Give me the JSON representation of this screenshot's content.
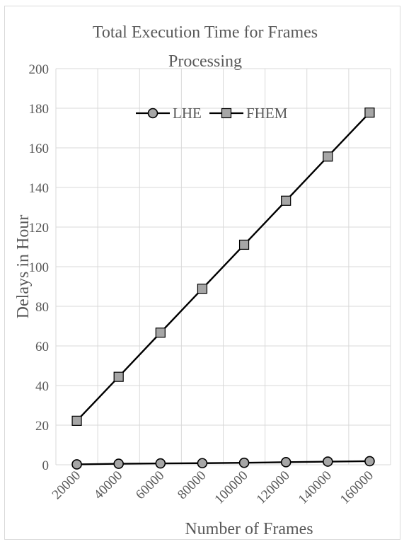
{
  "chart_data": {
    "type": "line",
    "title": "Total Execution Time for Frames Processing",
    "title_lines": [
      "Total Execution Time for Frames",
      "Processing"
    ],
    "xlabel": "Number of Frames",
    "ylabel": "Delays in Hour",
    "categories": [
      "20000",
      "40000",
      "60000",
      "80000",
      "100000",
      "120000",
      "140000",
      "160000"
    ],
    "ylim": [
      0,
      200
    ],
    "yticks": [
      "0",
      "20",
      "40",
      "60",
      "80",
      "100",
      "120",
      "140",
      "160",
      "180",
      "200"
    ],
    "grid": true,
    "legend_position": "top",
    "series": [
      {
        "name": "LHE",
        "marker": "circle",
        "values": [
          0.2,
          0.5,
          0.7,
          0.8,
          1.0,
          1.3,
          1.6,
          1.8
        ]
      },
      {
        "name": "FHEM",
        "marker": "square",
        "values": [
          22.2,
          44.4,
          66.7,
          88.9,
          111.1,
          133.3,
          155.6,
          177.8
        ]
      }
    ],
    "colors": {
      "line": "#000000",
      "marker_fill": "#a6a6a6",
      "grid": "#d9d9d9",
      "text": "#595959"
    }
  }
}
